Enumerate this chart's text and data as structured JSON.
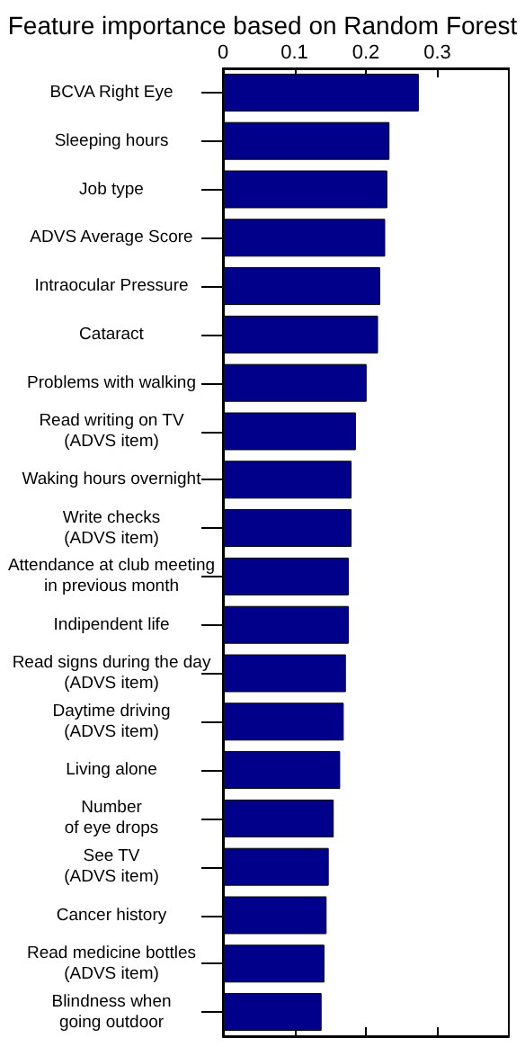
{
  "chart_data": {
    "type": "bar",
    "orientation": "horizontal",
    "title": "Feature importance based on Random Forest",
    "categories": [
      "BCVA Right Eye",
      "Sleeping hours",
      "Job type",
      "ADVS Average Score",
      "Intraocular Pressure",
      "Cataract",
      "Problems with walking",
      "Read writing on TV\n(ADVS item)",
      "Waking hours overnight",
      "Write checks\n(ADVS item)",
      "Attendance at club meeting\nin previous month",
      "Indipendent life",
      "Read signs during the day\n(ADVS item)",
      "Daytime driving\n(ADVS item)",
      "Living alone",
      "Number\nof eye drops",
      "See TV\n(ADVS item)",
      "Cancer history",
      "Read medicine bottles\n(ADVS item)",
      "Blindness when\ngoing outdoor"
    ],
    "values": [
      0.274,
      0.233,
      0.23,
      0.227,
      0.22,
      0.217,
      0.201,
      0.186,
      0.18,
      0.18,
      0.176,
      0.176,
      0.172,
      0.169,
      0.164,
      0.155,
      0.148,
      0.145,
      0.142,
      0.138
    ],
    "color": "#00008b",
    "xlim": [
      0,
      0.4
    ],
    "xticks": [
      0,
      0.1,
      0.2,
      0.3
    ],
    "grid": false
  }
}
